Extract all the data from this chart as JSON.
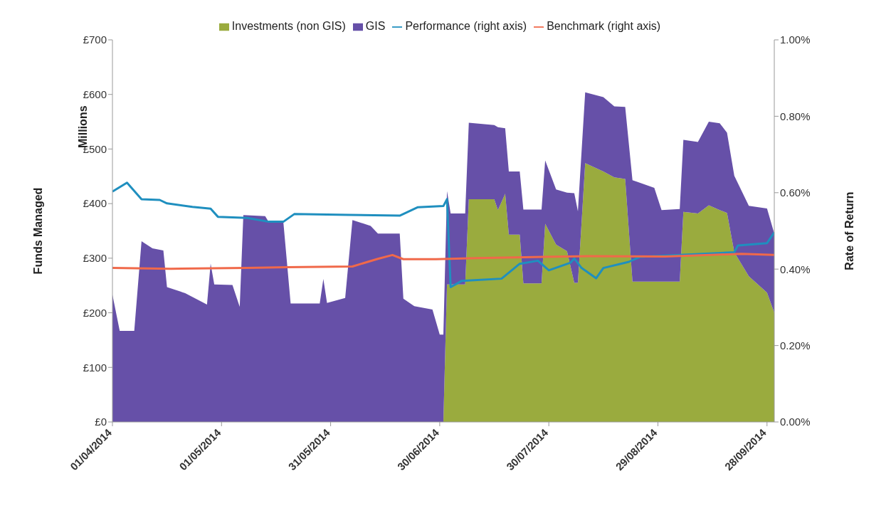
{
  "chart_data": {
    "type": "area",
    "stacked": true,
    "ylabel": "Funds Managed",
    "y2label": "Rate of Return",
    "annotations": [
      "Millions"
    ],
    "legend": "top",
    "x": [
      "2014-04-01",
      "2014-04-03",
      "2014-04-07",
      "2014-04-09",
      "2014-04-12",
      "2014-04-15",
      "2014-04-16",
      "2014-04-21",
      "2014-04-27",
      "2014-04-28",
      "2014-04-29",
      "2014-05-04",
      "2014-05-06",
      "2014-05-07",
      "2014-05-13",
      "2014-05-14",
      "2014-05-18",
      "2014-05-20",
      "2014-05-28",
      "2014-05-29",
      "2014-05-30",
      "2014-06-04",
      "2014-06-06",
      "2014-06-11",
      "2014-06-13",
      "2014-06-19",
      "2014-06-20",
      "2014-06-23",
      "2014-06-28",
      "2014-06-30",
      "2014-07-01",
      "2014-07-02",
      "2014-07-03",
      "2014-07-07",
      "2014-07-08",
      "2014-07-15",
      "2014-07-16",
      "2014-07-18",
      "2014-07-19",
      "2014-07-22",
      "2014-07-23",
      "2014-07-28",
      "2014-07-29",
      "2014-08-01",
      "2014-08-04",
      "2014-08-06",
      "2014-08-07",
      "2014-08-09",
      "2014-08-14",
      "2014-08-17",
      "2014-08-20",
      "2014-08-22",
      "2014-08-28",
      "2014-08-30",
      "2014-09-04",
      "2014-09-05",
      "2014-09-09",
      "2014-09-12",
      "2014-09-15",
      "2014-09-17",
      "2014-09-19",
      "2014-09-23",
      "2014-09-28",
      "2014-09-30"
    ],
    "series": [
      {
        "name": "Investments (non GIS)",
        "color": "#9aab3e",
        "values": [
          0,
          0,
          0,
          0,
          0,
          0,
          0,
          0,
          0,
          0,
          0,
          0,
          0,
          0,
          0,
          0,
          0,
          0,
          0,
          0,
          0,
          0,
          0,
          0,
          0,
          0,
          0,
          0,
          0,
          0,
          0,
          252,
          252,
          252,
          408,
          408,
          388,
          418,
          343,
          343,
          254,
          254,
          363,
          325,
          313,
          255,
          255,
          474,
          459,
          448,
          445,
          257,
          257,
          257,
          257,
          385,
          382,
          397,
          388,
          383,
          311,
          267,
          237,
          200
        ]
      },
      {
        "name": "GIS",
        "color": "#6650a8",
        "values": [
          233,
          167,
          167,
          331,
          318,
          314,
          247,
          236,
          215,
          290,
          252,
          251,
          211,
          379,
          377,
          366,
          366,
          217,
          217,
          262,
          218,
          227,
          370,
          359,
          345,
          345,
          226,
          212,
          206,
          160,
          160,
          171,
          130,
          130,
          140,
          136,
          152,
          120,
          116,
          116,
          135,
          135,
          116,
          101,
          107,
          164,
          131,
          130,
          136,
          130,
          132,
          186,
          172,
          131,
          133,
          132,
          131,
          153,
          159,
          147,
          140,
          129,
          154,
          145
        ]
      },
      {
        "name": "Performance (right axis)",
        "type": "line",
        "axis": "y2",
        "color": "#1f8fbf",
        "x": [
          "2014-04-01",
          "2014-04-05",
          "2014-04-09",
          "2014-04-14",
          "2014-04-16",
          "2014-04-23",
          "2014-04-28",
          "2014-04-30",
          "2014-05-08",
          "2014-05-14",
          "2014-05-18",
          "2014-05-21",
          "2014-06-05",
          "2014-06-19",
          "2014-06-24",
          "2014-07-01",
          "2014-07-02",
          "2014-07-03",
          "2014-07-06",
          "2014-07-17",
          "2014-07-22",
          "2014-07-27",
          "2014-07-30",
          "2014-08-05",
          "2014-08-06",
          "2014-08-08",
          "2014-08-12",
          "2014-08-14",
          "2014-08-21",
          "2014-08-24",
          "2014-09-19",
          "2014-09-20",
          "2014-09-28",
          "2014-09-30"
        ],
        "values": [
          0.603,
          0.626,
          0.583,
          0.581,
          0.572,
          0.563,
          0.558,
          0.537,
          0.534,
          0.524,
          0.524,
          0.544,
          0.542,
          0.54,
          0.562,
          0.565,
          0.583,
          0.353,
          0.369,
          0.375,
          0.414,
          0.422,
          0.397,
          0.417,
          0.428,
          0.403,
          0.376,
          0.403,
          0.419,
          0.432,
          0.444,
          0.462,
          0.468,
          0.496
        ]
      },
      {
        "name": "Benchmark (right axis)",
        "type": "line",
        "axis": "y2",
        "color": "#f0694a",
        "x": [
          "2014-04-01",
          "2014-04-17",
          "2014-05-08",
          "2014-05-19",
          "2014-06-06",
          "2014-06-13",
          "2014-06-17",
          "2014-06-20",
          "2014-06-29",
          "2014-07-10",
          "2014-08-10",
          "2014-08-31",
          "2014-09-21",
          "2014-09-30"
        ],
        "values": [
          0.403,
          0.401,
          0.403,
          0.405,
          0.407,
          0.427,
          0.437,
          0.426,
          0.426,
          0.429,
          0.434,
          0.433,
          0.44,
          0.437
        ]
      }
    ],
    "xlim": [
      "2014-04-01",
      "2014-09-30"
    ],
    "xticks": [
      {
        "value": "2014-04-01",
        "label": "01/04/2014"
      },
      {
        "value": "2014-05-01",
        "label": "01/05/2014"
      },
      {
        "value": "2014-05-31",
        "label": "31/05/2014"
      },
      {
        "value": "2014-06-30",
        "label": "30/06/2014"
      },
      {
        "value": "2014-07-30",
        "label": "30/07/2014"
      },
      {
        "value": "2014-08-29",
        "label": "29/08/2014"
      },
      {
        "value": "2014-09-28",
        "label": "28/09/2014"
      }
    ],
    "ylim": [
      0,
      700
    ],
    "yticks": [
      {
        "value": 0,
        "label": "£0"
      },
      {
        "value": 100,
        "label": "£100"
      },
      {
        "value": 200,
        "label": "£200"
      },
      {
        "value": 300,
        "label": "£300"
      },
      {
        "value": 400,
        "label": "£400"
      },
      {
        "value": 500,
        "label": "£500"
      },
      {
        "value": 600,
        "label": "£600"
      },
      {
        "value": 700,
        "label": "£700"
      }
    ],
    "y2lim": [
      0,
      1
    ],
    "y2ticks": [
      {
        "value": 0,
        "label": "0.00%"
      },
      {
        "value": 0.2,
        "label": "0.20%"
      },
      {
        "value": 0.4,
        "label": "0.40%"
      },
      {
        "value": 0.6,
        "label": "0.60%"
      },
      {
        "value": 0.8,
        "label": "0.80%"
      },
      {
        "value": 1,
        "label": "1.00%"
      }
    ]
  }
}
